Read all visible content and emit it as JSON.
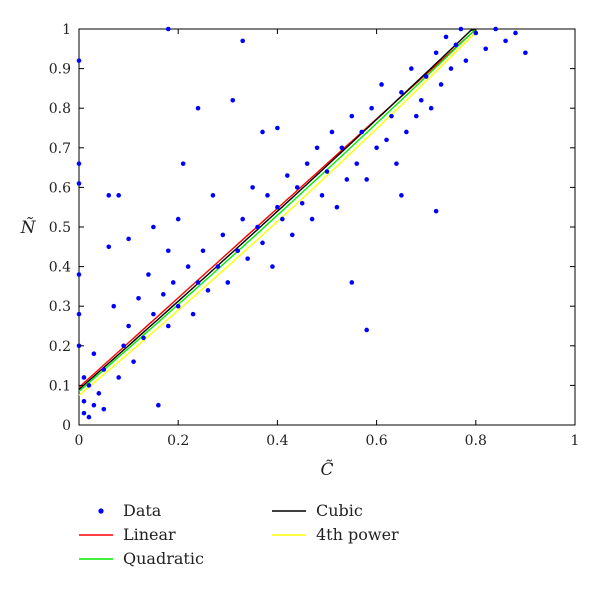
{
  "chart_data": {
    "type": "scatter",
    "title": "",
    "xlabel": "C̃",
    "ylabel": "Ñ",
    "xlim": [
      0,
      1
    ],
    "ylim": [
      0,
      1
    ],
    "xticks": [
      "0",
      "0.2",
      "0.4",
      "0.6",
      "0.8",
      "1"
    ],
    "yticks": [
      "0",
      "0.1",
      "0.2",
      "0.3",
      "0.4",
      "0.5",
      "0.6",
      "0.7",
      "0.8",
      "0.9",
      "1"
    ],
    "grid": false,
    "legend_position": "bottom",
    "series": [
      {
        "name": "Data",
        "kind": "points",
        "color": "#0000ff",
        "points": [
          [
            0.0,
            0.92
          ],
          [
            0.0,
            0.66
          ],
          [
            0.0,
            0.61
          ],
          [
            0.0,
            0.38
          ],
          [
            0.0,
            0.28
          ],
          [
            0.0,
            0.2
          ],
          [
            0.01,
            0.12
          ],
          [
            0.01,
            0.06
          ],
          [
            0.01,
            0.03
          ],
          [
            0.02,
            0.02
          ],
          [
            0.02,
            0.1
          ],
          [
            0.03,
            0.05
          ],
          [
            0.03,
            0.18
          ],
          [
            0.04,
            0.08
          ],
          [
            0.05,
            0.04
          ],
          [
            0.05,
            0.14
          ],
          [
            0.06,
            0.58
          ],
          [
            0.06,
            0.45
          ],
          [
            0.07,
            0.3
          ],
          [
            0.08,
            0.58
          ],
          [
            0.08,
            0.12
          ],
          [
            0.09,
            0.2
          ],
          [
            0.1,
            0.25
          ],
          [
            0.1,
            0.47
          ],
          [
            0.11,
            0.16
          ],
          [
            0.12,
            0.32
          ],
          [
            0.13,
            0.22
          ],
          [
            0.14,
            0.38
          ],
          [
            0.15,
            0.28
          ],
          [
            0.15,
            0.5
          ],
          [
            0.16,
            0.05
          ],
          [
            0.17,
            0.33
          ],
          [
            0.18,
            0.25
          ],
          [
            0.18,
            0.44
          ],
          [
            0.19,
            0.36
          ],
          [
            0.2,
            0.3
          ],
          [
            0.2,
            0.52
          ],
          [
            0.21,
            0.66
          ],
          [
            0.22,
            0.4
          ],
          [
            0.23,
            0.28
          ],
          [
            0.24,
            0.8
          ],
          [
            0.24,
            0.36
          ],
          [
            0.25,
            0.44
          ],
          [
            0.26,
            0.34
          ],
          [
            0.27,
            0.58
          ],
          [
            0.28,
            0.4
          ],
          [
            0.29,
            0.48
          ],
          [
            0.3,
            0.36
          ],
          [
            0.31,
            0.82
          ],
          [
            0.32,
            0.44
          ],
          [
            0.33,
            0.52
          ],
          [
            0.34,
            0.42
          ],
          [
            0.35,
            0.6
          ],
          [
            0.36,
            0.5
          ],
          [
            0.37,
            0.46
          ],
          [
            0.38,
            0.58
          ],
          [
            0.39,
            0.4
          ],
          [
            0.4,
            0.55
          ],
          [
            0.4,
            0.75
          ],
          [
            0.41,
            0.52
          ],
          [
            0.42,
            0.63
          ],
          [
            0.43,
            0.48
          ],
          [
            0.44,
            0.6
          ],
          [
            0.45,
            0.56
          ],
          [
            0.46,
            0.66
          ],
          [
            0.47,
            0.52
          ],
          [
            0.48,
            0.7
          ],
          [
            0.49,
            0.58
          ],
          [
            0.5,
            0.64
          ],
          [
            0.51,
            0.74
          ],
          [
            0.52,
            0.55
          ],
          [
            0.53,
            0.7
          ],
          [
            0.54,
            0.62
          ],
          [
            0.55,
            0.78
          ],
          [
            0.56,
            0.66
          ],
          [
            0.57,
            0.74
          ],
          [
            0.58,
            0.24
          ],
          [
            0.58,
            0.62
          ],
          [
            0.59,
            0.8
          ],
          [
            0.6,
            0.7
          ],
          [
            0.61,
            0.86
          ],
          [
            0.62,
            0.72
          ],
          [
            0.63,
            0.78
          ],
          [
            0.64,
            0.66
          ],
          [
            0.65,
            0.84
          ],
          [
            0.66,
            0.74
          ],
          [
            0.67,
            0.9
          ],
          [
            0.68,
            0.78
          ],
          [
            0.69,
            0.82
          ],
          [
            0.7,
            0.88
          ],
          [
            0.71,
            0.8
          ],
          [
            0.72,
            0.94
          ],
          [
            0.73,
            0.86
          ],
          [
            0.74,
            0.98
          ],
          [
            0.75,
            0.9
          ],
          [
            0.76,
            0.96
          ],
          [
            0.77,
            1.0
          ],
          [
            0.78,
            0.92
          ],
          [
            0.8,
            0.99
          ],
          [
            0.82,
            0.95
          ],
          [
            0.84,
            1.0
          ],
          [
            0.86,
            0.97
          ],
          [
            0.88,
            0.99
          ],
          [
            0.9,
            0.94
          ],
          [
            0.33,
            0.97
          ],
          [
            0.18,
            1.0
          ],
          [
            0.37,
            0.74
          ],
          [
            0.72,
            0.54
          ],
          [
            0.65,
            0.58
          ],
          [
            0.55,
            0.36
          ]
        ]
      },
      {
        "name": "Linear",
        "kind": "line",
        "color": "#ff0000",
        "poly": [
          0.095,
          1.13
        ]
      },
      {
        "name": "Quadratic",
        "kind": "line",
        "color": "#00ee00",
        "poly": [
          0.085,
          1.08,
          0.08
        ]
      },
      {
        "name": "Cubic",
        "kind": "line",
        "color": "#000000",
        "poly": [
          0.09,
          1.1,
          0.06,
          0.0
        ]
      },
      {
        "name": "4th power",
        "kind": "line",
        "color": "#ffff00",
        "poly": [
          0.075,
          1.05,
          0.12,
          0.0,
          0.0
        ]
      }
    ],
    "legend": {
      "columns": [
        [
          "Data",
          "Linear",
          "Quadratic"
        ],
        [
          "Cubic",
          "4th power"
        ]
      ]
    }
  }
}
